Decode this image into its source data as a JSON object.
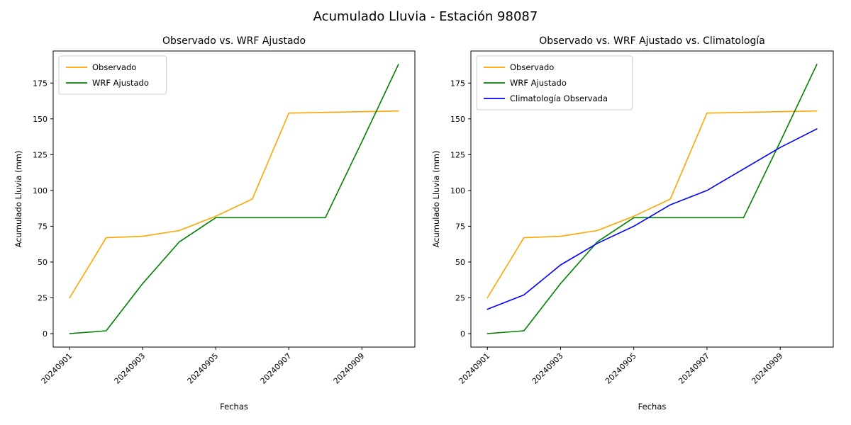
{
  "figure": {
    "title": "Acumulado Lluvia - Estación 98087",
    "background_color": "#ffffff",
    "text_color": "#000000"
  },
  "chart_data": [
    {
      "type": "line",
      "title": "Observado vs. WRF Ajustado",
      "xlabel": "Fechas",
      "ylabel": "Acumulado Lluvia (mm)",
      "x": [
        "20240901",
        "20240902",
        "20240903",
        "20240904",
        "20240905",
        "20240906",
        "20240907",
        "20240908",
        "20240909",
        "20240910"
      ],
      "xtick_indices": [
        0,
        2,
        4,
        6,
        8
      ],
      "xtick_rotation_deg": 45,
      "yticks": [
        0,
        25,
        50,
        75,
        100,
        125,
        150,
        175
      ],
      "ylim": [
        -9.4,
        197.4
      ],
      "grid": false,
      "legend_position": "upper left",
      "series": [
        {
          "name": "Observado",
          "color": "#FFA500",
          "values": [
            25,
            67,
            68,
            72,
            82,
            94,
            154,
            154.5,
            155,
            155.5
          ]
        },
        {
          "name": "WRF Ajustado",
          "color": "#008000",
          "values": [
            0,
            2,
            35,
            64,
            81,
            81,
            81,
            81,
            134,
            188
          ]
        }
      ]
    },
    {
      "type": "line",
      "title": "Observado vs. WRF Ajustado vs. Climatología",
      "xlabel": "Fechas",
      "ylabel": "Acumulado Lluvia (mm)",
      "x": [
        "20240901",
        "20240902",
        "20240903",
        "20240904",
        "20240905",
        "20240906",
        "20240907",
        "20240908",
        "20240909",
        "20240910"
      ],
      "xtick_indices": [
        0,
        2,
        4,
        6,
        8
      ],
      "xtick_rotation_deg": 45,
      "yticks": [
        0,
        25,
        50,
        75,
        100,
        125,
        150,
        175
      ],
      "ylim": [
        -9.4,
        197.4
      ],
      "grid": false,
      "legend_position": "upper left",
      "series": [
        {
          "name": "Observado",
          "color": "#FFA500",
          "values": [
            25,
            67,
            68,
            72,
            82,
            94,
            154,
            154.5,
            155,
            155.5
          ]
        },
        {
          "name": "WRF Ajustado",
          "color": "#008000",
          "values": [
            0,
            2,
            35,
            64,
            81,
            81,
            81,
            81,
            134,
            188
          ]
        },
        {
          "name": "Climatología Observada",
          "color": "#0000FF",
          "values": [
            17,
            27,
            48,
            63,
            75,
            90,
            100,
            115,
            130,
            143
          ]
        }
      ]
    }
  ]
}
